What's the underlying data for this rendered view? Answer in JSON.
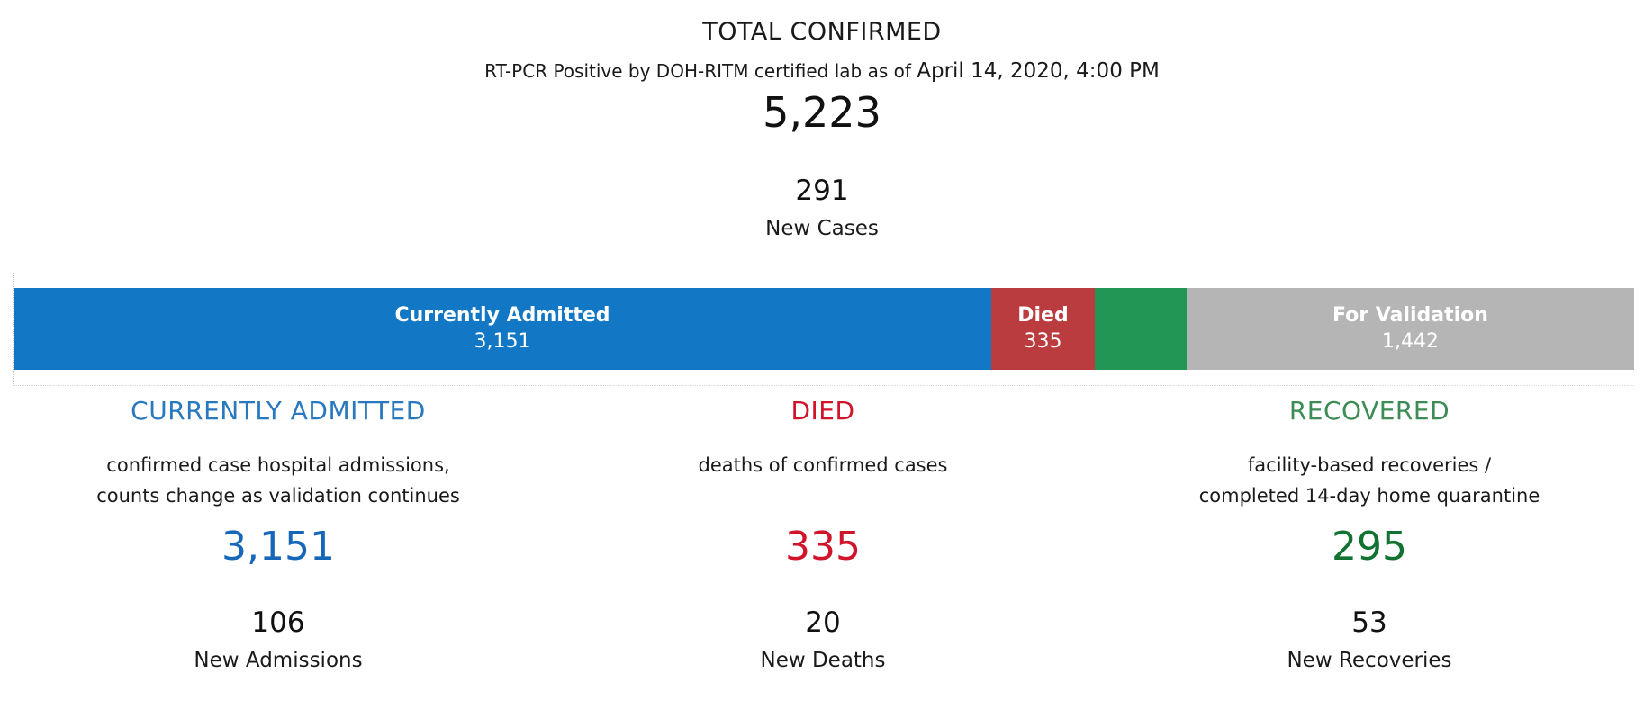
{
  "header": {
    "title": "TOTAL CONFIRMED",
    "subtitle_prefix": "RT-PCR Positive by DOH-RITM certified lab as of",
    "as_of": "April 14, 2020, 4:00 PM",
    "total": "5,223",
    "new_cases_value": "291",
    "new_cases_label": "New Cases"
  },
  "bar": {
    "total": 5223,
    "segments": [
      {
        "label": "Currently Admitted",
        "value_text": "3,151",
        "value": 3151,
        "color": "#1277c4"
      },
      {
        "label": "Died",
        "value_text": "335",
        "value": 335,
        "color": "#bb3c3f"
      },
      {
        "label": "",
        "value_text": "",
        "value": 295,
        "color": "#229654"
      },
      {
        "label": "For Validation",
        "value_text": "1,442",
        "value": 1442,
        "color": "#b5b5b6"
      }
    ]
  },
  "panels": {
    "admitted": {
      "title": "CURRENTLY ADMITTED",
      "title_color": "#2a78be",
      "desc_line1": "confirmed case hospital admissions,",
      "desc_line2": "counts change as validation continues",
      "value": "3,151",
      "value_color": "#1767b8",
      "new_value": "106",
      "new_label": "New Admissions"
    },
    "died": {
      "title": "DIED",
      "title_color": "#d0142a",
      "desc_line1": "deaths of confirmed cases",
      "desc_line2": "",
      "value": "335",
      "value_color": "#d0142a",
      "new_value": "20",
      "new_label": "New Deaths"
    },
    "recovered": {
      "title": "RECOVERED",
      "title_color": "#3d8c55",
      "desc_line1": "facility-based recoveries /",
      "desc_line2": "completed 14-day home quarantine",
      "value": "295",
      "value_color": "#127231",
      "new_value": "53",
      "new_label": "New Recoveries"
    }
  }
}
